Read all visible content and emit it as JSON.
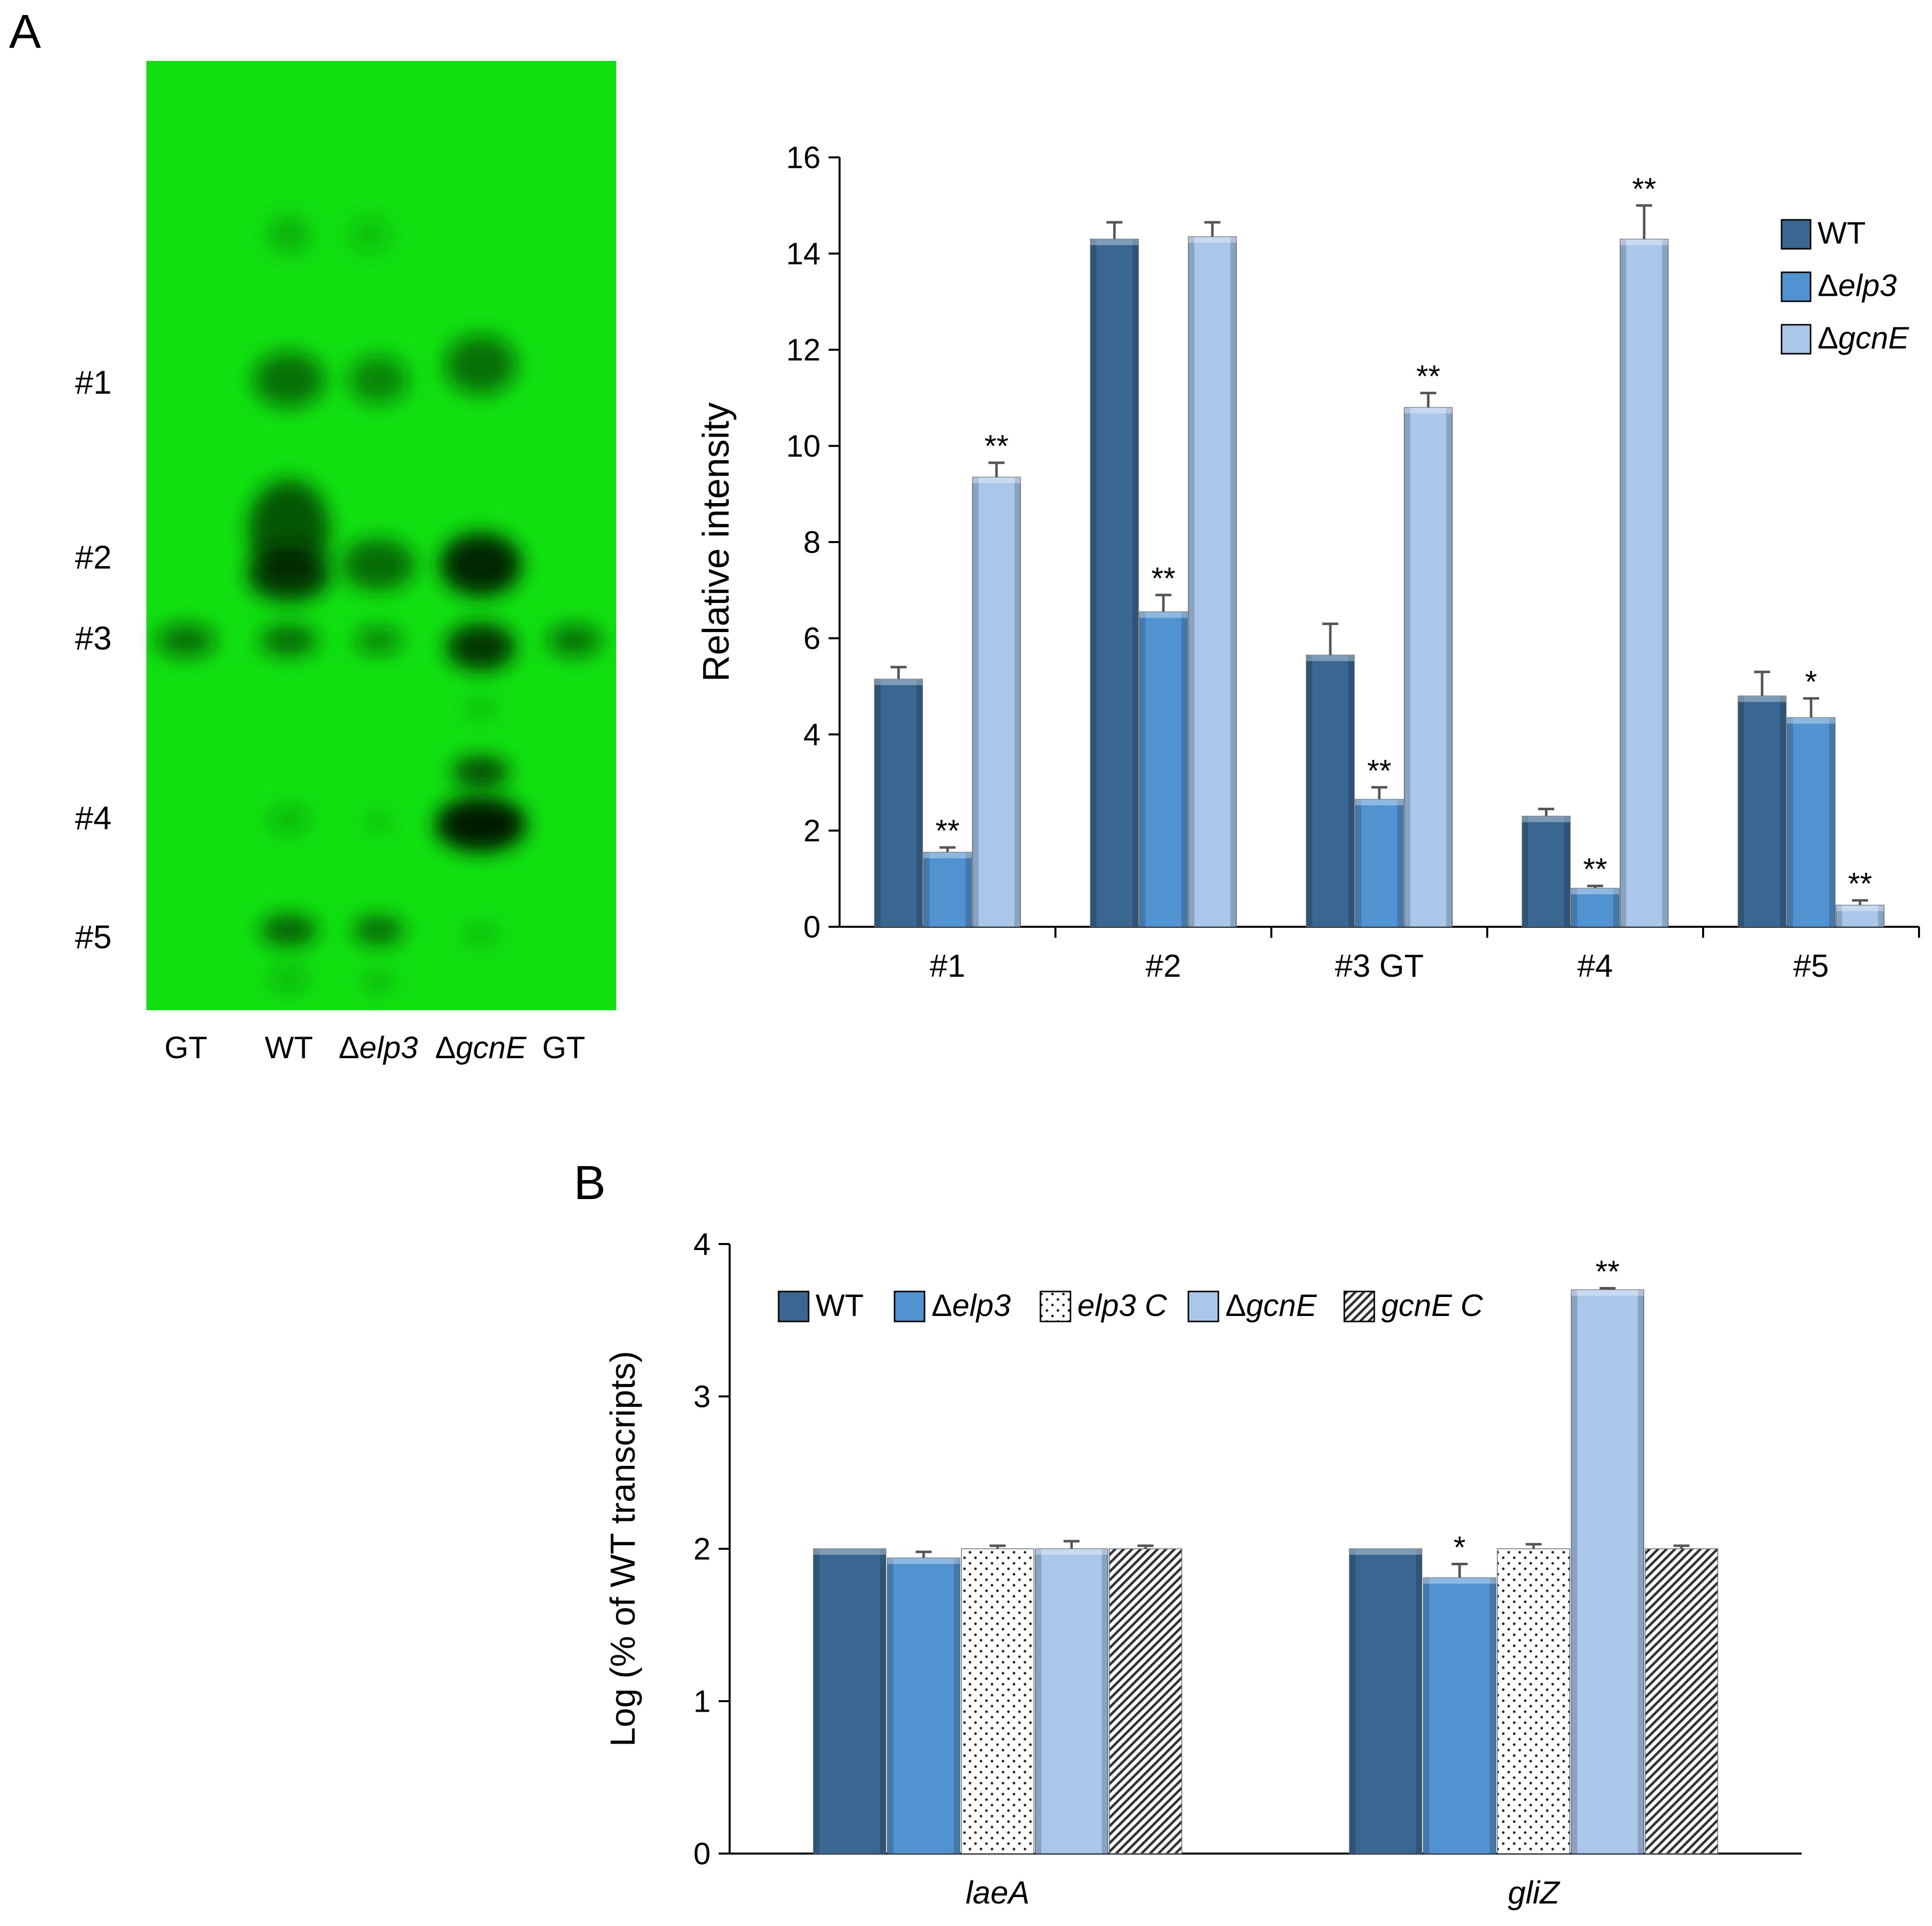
{
  "panels": {
    "a_label": "A",
    "b_label": "B"
  },
  "tlc": {
    "spot_labels": [
      "#1",
      "#2",
      "#3",
      "#4",
      "#5"
    ],
    "lane_labels": [
      {
        "prefix": "",
        "italic": "",
        "tail": "GT"
      },
      {
        "prefix": "",
        "italic": "",
        "tail": "WT"
      },
      {
        "prefix": "Δ",
        "italic": "elp3",
        "tail": ""
      },
      {
        "prefix": "Δ",
        "italic": "gcnE",
        "tail": ""
      },
      {
        "prefix": "",
        "italic": "",
        "tail": "GT"
      }
    ],
    "plate_color": "#10e010"
  },
  "chart_data": [
    {
      "type": "bar",
      "ylabel": "Relative intensity",
      "ylim": [
        0,
        16
      ],
      "yticks": [
        0,
        2,
        4,
        6,
        8,
        10,
        12,
        14,
        16
      ],
      "categories": [
        "#1",
        "#2",
        "#3 GT",
        "#4",
        "#5"
      ],
      "legend_position": "top-right",
      "series": [
        {
          "name": "WT",
          "prefix": "",
          "italic": "",
          "tail": "WT",
          "color": "#3a6791",
          "values": [
            5.15,
            14.3,
            5.65,
            2.3,
            4.8
          ],
          "errors": [
            0.25,
            0.35,
            0.65,
            0.15,
            0.5
          ],
          "sig": [
            "",
            "",
            "",
            "",
            ""
          ]
        },
        {
          "name": "Δelp3",
          "prefix": "Δ",
          "italic": "elp3",
          "tail": "",
          "color": "#5193d1",
          "values": [
            1.55,
            6.55,
            2.65,
            0.8,
            4.35
          ],
          "errors": [
            0.1,
            0.35,
            0.25,
            0.05,
            0.4
          ],
          "sig": [
            "**",
            "**",
            "**",
            "**",
            "*"
          ]
        },
        {
          "name": "ΔgcnE",
          "prefix": "Δ",
          "italic": "gcnE",
          "tail": "",
          "color": "#aac6e9",
          "values": [
            9.35,
            14.35,
            10.8,
            14.3,
            0.45
          ],
          "errors": [
            0.3,
            0.3,
            0.3,
            0.7,
            0.1
          ],
          "sig": [
            "**",
            "",
            "**",
            "**",
            "**"
          ]
        }
      ]
    },
    {
      "type": "bar",
      "ylabel": "Log (% of WT transcripts)",
      "ylim": [
        0,
        4
      ],
      "yticks": [
        0,
        1,
        2,
        3,
        4
      ],
      "categories": [
        "laeA",
        "gliZ"
      ],
      "legend_position": "top-left",
      "series": [
        {
          "name": "WT",
          "prefix": "",
          "italic": "",
          "tail": "WT",
          "color": "#3a6791",
          "pattern": "solid",
          "values": [
            2.0,
            2.0
          ],
          "errors": [
            0,
            0
          ],
          "sig": [
            "",
            ""
          ]
        },
        {
          "name": "Δelp3",
          "prefix": "Δ",
          "italic": "elp3",
          "tail": "",
          "color": "#5193d1",
          "pattern": "solid",
          "values": [
            1.94,
            1.81
          ],
          "errors": [
            0.04,
            0.09
          ],
          "sig": [
            "",
            "*"
          ]
        },
        {
          "name": "elp3 C",
          "prefix": "",
          "italic": "elp3 C",
          "tail": "",
          "color": "#ffffff",
          "pattern": "dots",
          "values": [
            2.0,
            2.0
          ],
          "errors": [
            0.02,
            0.03
          ],
          "sig": [
            "",
            ""
          ]
        },
        {
          "name": "ΔgcnE",
          "prefix": "Δ",
          "italic": "gcnE",
          "tail": "",
          "color": "#aac6e9",
          "pattern": "solid",
          "values": [
            2.0,
            3.7
          ],
          "errors": [
            0.05,
            0.01
          ],
          "sig": [
            "",
            "**"
          ]
        },
        {
          "name": "gcnE C",
          "prefix": "",
          "italic": "gcnE C",
          "tail": "",
          "color": "#ffffff",
          "pattern": "hatch",
          "values": [
            2.0,
            2.0
          ],
          "errors": [
            0.02,
            0.02
          ],
          "sig": [
            "",
            ""
          ]
        }
      ]
    }
  ]
}
